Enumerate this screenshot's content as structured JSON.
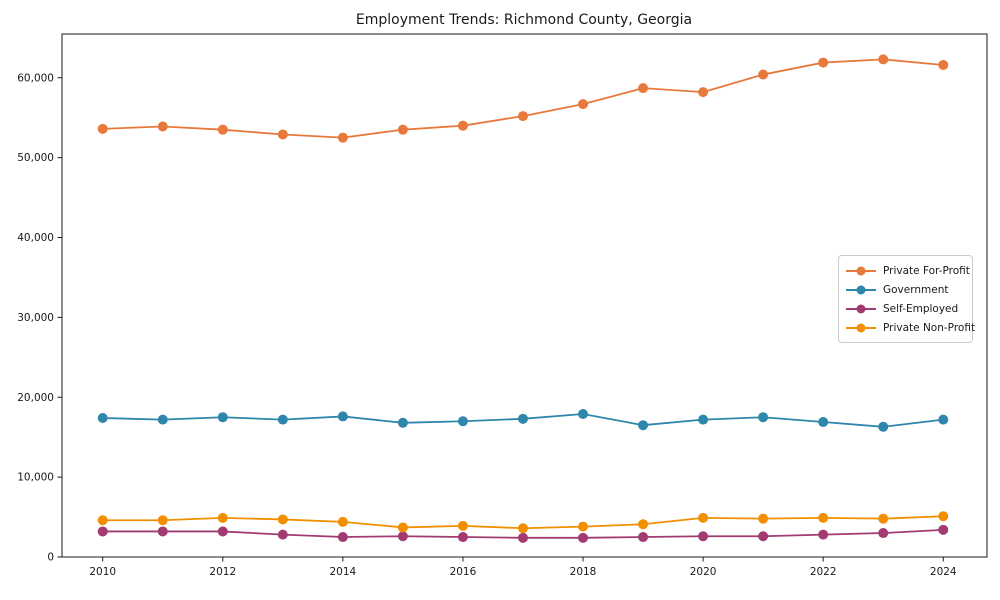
{
  "chart_data": {
    "type": "line",
    "title": "Employment Trends: Richmond County, Georgia",
    "xlabel": "",
    "ylabel": "",
    "x": [
      2010,
      2011,
      2012,
      2013,
      2014,
      2015,
      2016,
      2017,
      2018,
      2019,
      2020,
      2021,
      2022,
      2023,
      2024
    ],
    "xtick_labels": [
      "2010",
      "2012",
      "2014",
      "2016",
      "2018",
      "2020",
      "2022",
      "2024"
    ],
    "ytick_values": [
      0,
      10000,
      20000,
      30000,
      40000,
      50000,
      60000
    ],
    "ytick_labels": [
      "0",
      "10,000",
      "20,000",
      "30,000",
      "40,000",
      "50,000",
      "60,000"
    ],
    "ylim": [
      0,
      65400
    ],
    "grid": false,
    "legend_position": "center-right",
    "series": [
      {
        "name": "Private For-Profit",
        "color": "#E8793D",
        "values": [
          53600,
          53900,
          53500,
          52900,
          52500,
          53500,
          54000,
          55200,
          56700,
          58700,
          58200,
          60400,
          61900,
          62300,
          61600
        ]
      },
      {
        "name": "Government",
        "color": "#2E86AB",
        "values": [
          17400,
          17200,
          17500,
          17200,
          17600,
          16800,
          17000,
          17300,
          17900,
          16500,
          17200,
          17500,
          16900,
          16300,
          17200
        ]
      },
      {
        "name": "Self-Employed",
        "color": "#A23B72",
        "values": [
          3200,
          3200,
          3200,
          2800,
          2500,
          2600,
          2500,
          2400,
          2400,
          2500,
          2600,
          2600,
          2800,
          3000,
          3400
        ]
      },
      {
        "name": "Private Non-Profit",
        "color": "#F18F01",
        "values": [
          4600,
          4600,
          4900,
          4700,
          4400,
          3700,
          3900,
          3600,
          3800,
          4100,
          4900,
          4800,
          4900,
          4800,
          5100
        ]
      }
    ]
  }
}
